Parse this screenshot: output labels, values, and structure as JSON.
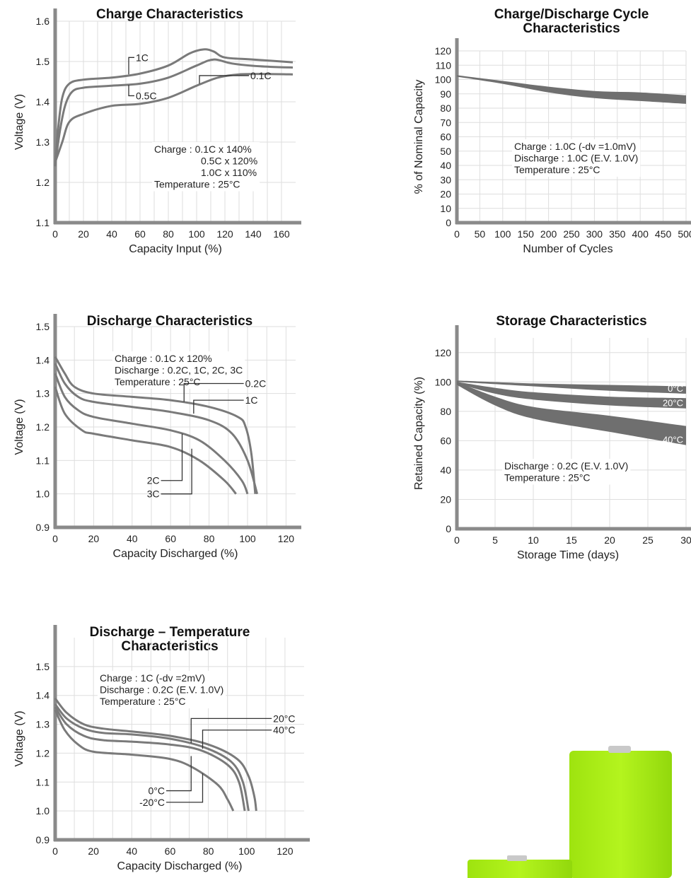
{
  "chart_data": [
    {
      "id": "charge",
      "type": "line",
      "title": [
        "Charge Characteristics"
      ],
      "xlabel": "Capacity Input (%)",
      "ylabel": "Voltage (V)",
      "xlim": [
        0,
        170
      ],
      "ylim": [
        1.1,
        1.6
      ],
      "xticks": [
        0,
        20,
        40,
        60,
        80,
        100,
        120,
        140,
        160
      ],
      "yticks": [
        1.1,
        1.2,
        1.3,
        1.4,
        1.5,
        1.6
      ],
      "ytick_labels": [
        "1.1",
        "1.2",
        "1.3",
        "1.4",
        "1.5",
        "1.6"
      ],
      "series": [
        {
          "name": "1C",
          "points": [
            [
              0,
              1.24
            ],
            [
              2,
              1.33
            ],
            [
              5,
              1.41
            ],
            [
              10,
              1.445
            ],
            [
              20,
              1.455
            ],
            [
              40,
              1.46
            ],
            [
              60,
              1.47
            ],
            [
              80,
              1.49
            ],
            [
              95,
              1.52
            ],
            [
              105,
              1.53
            ],
            [
              112,
              1.525
            ],
            [
              120,
              1.51
            ],
            [
              140,
              1.505
            ],
            [
              168,
              1.498
            ]
          ]
        },
        {
          "name": "0.5C",
          "points": [
            [
              0,
              1.24
            ],
            [
              3,
              1.32
            ],
            [
              7,
              1.39
            ],
            [
              12,
              1.425
            ],
            [
              20,
              1.435
            ],
            [
              40,
              1.44
            ],
            [
              60,
              1.445
            ],
            [
              80,
              1.46
            ],
            [
              100,
              1.49
            ],
            [
              112,
              1.505
            ],
            [
              125,
              1.495
            ],
            [
              145,
              1.488
            ],
            [
              168,
              1.485
            ]
          ]
        },
        {
          "name": "0.1C",
          "points": [
            [
              0,
              1.25
            ],
            [
              5,
              1.3
            ],
            [
              10,
              1.35
            ],
            [
              20,
              1.37
            ],
            [
              40,
              1.39
            ],
            [
              60,
              1.395
            ],
            [
              80,
              1.41
            ],
            [
              100,
              1.44
            ],
            [
              115,
              1.46
            ],
            [
              130,
              1.468
            ],
            [
              150,
              1.469
            ],
            [
              168,
              1.468
            ]
          ]
        }
      ],
      "labels": [
        {
          "text": "1C",
          "x": 52,
          "y": 1.51,
          "tx": 62,
          "ty": 1.51,
          "anchor_x": 52,
          "anchor_y": 1.468
        },
        {
          "text": "0.5C",
          "x": 52,
          "y": 1.415,
          "tx": 62,
          "ty": 1.415,
          "anchor_x": 52,
          "anchor_y": 1.442
        },
        {
          "text": "0.1C",
          "x": 122,
          "y": 1.465,
          "tx": 124,
          "ty": 1.465,
          "anchor_x": 102,
          "anchor_y": 1.445,
          "leftline": true
        }
      ],
      "notes": [
        "Charge : 0.1C x 140%",
        "0.5C x 120%",
        "1.0C x 110%",
        "Temperature : 25°C"
      ]
    },
    {
      "id": "cycle",
      "type": "area",
      "title": [
        "Charge/Discharge Cycle",
        "Characteristics"
      ],
      "xlabel": "Number of Cycles",
      "ylabel": "% of Nominal Capacity",
      "xlim": [
        0,
        500
      ],
      "ylim": [
        0,
        120
      ],
      "xticks": [
        0,
        50,
        100,
        150,
        200,
        250,
        300,
        350,
        400,
        450,
        500
      ],
      "yticks": [
        0,
        10,
        20,
        30,
        40,
        50,
        60,
        70,
        80,
        90,
        100,
        110,
        120
      ],
      "ytick_labels": [
        "0",
        "10",
        "20",
        "30",
        "40",
        "50",
        "60",
        "70",
        "80",
        "90",
        "100",
        "110",
        "120"
      ],
      "bands": [
        {
          "name": "",
          "upper": [
            [
              0,
              103
            ],
            [
              100,
              99
            ],
            [
              200,
              95
            ],
            [
              300,
              92
            ],
            [
              400,
              91
            ],
            [
              500,
              89
            ]
          ],
          "lower": [
            [
              0,
              102
            ],
            [
              100,
              97
            ],
            [
              200,
              91
            ],
            [
              300,
              87
            ],
            [
              400,
              85
            ],
            [
              500,
              83
            ]
          ]
        }
      ],
      "notes": [
        "Charge : 1.0C (-dv =1.0mV)",
        "Discharge : 1.0C (E.V. 1.0V)",
        "Temperature : 25°C"
      ]
    },
    {
      "id": "discharge",
      "type": "line",
      "title": [
        "Discharge Characteristics"
      ],
      "xlabel": "Capacity Discharged (%)",
      "ylabel": "Voltage (V)",
      "xlim": [
        0,
        125
      ],
      "ylim": [
        0.9,
        1.5
      ],
      "xticks": [
        0,
        20,
        40,
        60,
        80,
        100,
        120
      ],
      "yticks": [
        0.9,
        1.0,
        1.1,
        1.2,
        1.3,
        1.4,
        1.5
      ],
      "ytick_labels": [
        "0.9",
        "1.0",
        "1.1",
        "1.2",
        "1.3",
        "1.4",
        "1.5"
      ],
      "series": [
        {
          "name": "0.2C",
          "points": [
            [
              0,
              1.41
            ],
            [
              5,
              1.36
            ],
            [
              10,
              1.32
            ],
            [
              20,
              1.3
            ],
            [
              40,
              1.29
            ],
            [
              60,
              1.28
            ],
            [
              80,
              1.26
            ],
            [
              95,
              1.23
            ],
            [
              99,
              1.2
            ],
            [
              102,
              1.12
            ],
            [
              104,
              1.0
            ]
          ]
        },
        {
          "name": "1C",
          "points": [
            [
              0,
              1.39
            ],
            [
              5,
              1.33
            ],
            [
              12,
              1.29
            ],
            [
              20,
              1.275
            ],
            [
              40,
              1.26
            ],
            [
              60,
              1.245
            ],
            [
              80,
              1.22
            ],
            [
              92,
              1.18
            ],
            [
              100,
              1.1
            ],
            [
              105,
              1.0
            ]
          ]
        },
        {
          "name": "2C",
          "points": [
            [
              0,
              1.36
            ],
            [
              5,
              1.29
            ],
            [
              12,
              1.25
            ],
            [
              20,
              1.23
            ],
            [
              40,
              1.21
            ],
            [
              60,
              1.19
            ],
            [
              75,
              1.16
            ],
            [
              88,
              1.1
            ],
            [
              97,
              1.04
            ],
            [
              100,
              1.0
            ]
          ]
        },
        {
          "name": "3C",
          "points": [
            [
              0,
              1.32
            ],
            [
              5,
              1.24
            ],
            [
              14,
              1.19
            ],
            [
              20,
              1.18
            ],
            [
              40,
              1.16
            ],
            [
              60,
              1.14
            ],
            [
              75,
              1.1
            ],
            [
              88,
              1.04
            ],
            [
              94,
              1.0
            ]
          ]
        }
      ],
      "labels": [
        {
          "text": "0.2C",
          "x": 87,
          "y": 1.33,
          "tx": 87,
          "ty": 1.33,
          "anchor_x": 67,
          "anchor_y": 1.275,
          "leftline": true
        },
        {
          "text": "1C",
          "x": 87,
          "y": 1.28,
          "tx": 87,
          "ty": 1.28,
          "anchor_x": 72,
          "anchor_y": 1.24,
          "leftline": true
        },
        {
          "text": "2C",
          "x": 55,
          "y": 1.04,
          "tx": 55,
          "ty": 1.04,
          "anchor_x": 66,
          "anchor_y": 1.18,
          "rightline": true
        },
        {
          "text": "3C",
          "x": 55,
          "y": 1.0,
          "tx": 55,
          "ty": 1.0,
          "anchor_x": 71,
          "anchor_y": 1.135,
          "rightline": true
        }
      ],
      "notes": [
        "Charge : 0.1C x 120%",
        "Discharge : 0.2C, 1C, 2C, 3C",
        "Temperature : 25°C"
      ]
    },
    {
      "id": "storage",
      "type": "area",
      "title": [
        "Storage Characteristics"
      ],
      "xlabel": "Storage Time (days)",
      "ylabel": "Retained Capacity (%)",
      "xlim": [
        0,
        30
      ],
      "ylim": [
        0,
        130
      ],
      "xticks": [
        0,
        5,
        10,
        15,
        20,
        25,
        30
      ],
      "yticks": [
        0,
        20,
        40,
        60,
        80,
        100,
        120
      ],
      "ytick_labels": [
        "0",
        "20",
        "40",
        "60",
        "80",
        "100",
        "120"
      ],
      "bands": [
        {
          "name": "0°C",
          "upper": [
            [
              0,
              101
            ],
            [
              10,
              99
            ],
            [
              20,
              98
            ],
            [
              30,
              97
            ]
          ],
          "lower": [
            [
              0,
              100
            ],
            [
              10,
              97
            ],
            [
              20,
              94
            ],
            [
              30,
              92
            ]
          ]
        },
        {
          "name": "20°C",
          "upper": [
            [
              0,
              100
            ],
            [
              5,
              96
            ],
            [
              10,
              93
            ],
            [
              20,
              90
            ],
            [
              30,
              89
            ]
          ],
          "lower": [
            [
              0,
              99
            ],
            [
              5,
              92
            ],
            [
              10,
              88
            ],
            [
              20,
              84
            ],
            [
              30,
              82
            ]
          ]
        },
        {
          "name": "40°C",
          "upper": [
            [
              0,
              100
            ],
            [
              5,
              90
            ],
            [
              10,
              83
            ],
            [
              20,
              77
            ],
            [
              30,
              70
            ]
          ],
          "lower": [
            [
              0,
              98
            ],
            [
              5,
              84
            ],
            [
              10,
              75
            ],
            [
              20,
              66
            ],
            [
              30,
              57
            ]
          ]
        }
      ],
      "notes": [
        "Discharge : 0.2C (E.V. 1.0V)",
        "Temperature : 25°C"
      ]
    },
    {
      "id": "disctemp",
      "type": "line",
      "title": [
        "Discharge – Temperature",
        "Characteristics"
      ],
      "xlabel": "Capacity Discharged (%)",
      "ylabel": "Voltage (V)",
      "xlim": [
        0,
        130
      ],
      "ylim": [
        0.9,
        1.6
      ],
      "xticks": [
        0,
        20,
        40,
        60,
        80,
        100,
        120
      ],
      "yticks": [
        0.9,
        1.0,
        1.1,
        1.2,
        1.3,
        1.4,
        1.5
      ],
      "ytick_labels": [
        "0.9",
        "1.0",
        "1.1",
        "1.2",
        "1.3",
        "1.4",
        "1.5"
      ],
      "series": [
        {
          "name": "20°C",
          "points": [
            [
              0,
              1.39
            ],
            [
              6,
              1.34
            ],
            [
              15,
              1.3
            ],
            [
              25,
              1.285
            ],
            [
              40,
              1.275
            ],
            [
              60,
              1.26
            ],
            [
              80,
              1.23
            ],
            [
              95,
              1.18
            ],
            [
              101,
              1.12
            ],
            [
              104,
              1.05
            ],
            [
              105,
              1.0
            ]
          ]
        },
        {
          "name": "40°C",
          "points": [
            [
              0,
              1.37
            ],
            [
              6,
              1.32
            ],
            [
              15,
              1.285
            ],
            [
              25,
              1.27
            ],
            [
              40,
              1.265
            ],
            [
              60,
              1.25
            ],
            [
              78,
              1.22
            ],
            [
              92,
              1.17
            ],
            [
              98,
              1.1
            ],
            [
              101,
              1.0
            ]
          ]
        },
        {
          "name": "0°C",
          "points": [
            [
              0,
              1.36
            ],
            [
              6,
              1.3
            ],
            [
              15,
              1.26
            ],
            [
              25,
              1.245
            ],
            [
              40,
              1.24
            ],
            [
              60,
              1.23
            ],
            [
              76,
              1.21
            ],
            [
              90,
              1.16
            ],
            [
              96,
              1.1
            ],
            [
              99,
              1.0
            ]
          ]
        },
        {
          "name": "-20°C",
          "points": [
            [
              0,
              1.35
            ],
            [
              5,
              1.28
            ],
            [
              12,
              1.23
            ],
            [
              20,
              1.205
            ],
            [
              40,
              1.195
            ],
            [
              60,
              1.18
            ],
            [
              72,
              1.15
            ],
            [
              85,
              1.09
            ],
            [
              90,
              1.04
            ],
            [
              93,
              1.0
            ]
          ]
        }
      ],
      "labels": [
        {
          "text": "20°C",
          "x": 102,
          "y": 1.32,
          "tx": 102,
          "ty": 1.32,
          "anchor_x": 71,
          "anchor_y": 1.235,
          "leftline": true
        },
        {
          "text": "40°C",
          "x": 102,
          "y": 1.28,
          "tx": 102,
          "ty": 1.28,
          "anchor_x": 77,
          "anchor_y": 1.215,
          "leftline": true
        },
        {
          "text": "0°C",
          "x": 58,
          "y": 1.07,
          "tx": 58,
          "ty": 1.07,
          "anchor_x": 71,
          "anchor_y": 1.19,
          "rightline": true
        },
        {
          "text": "-20°C",
          "x": 58,
          "y": 1.03,
          "tx": 58,
          "ty": 1.03,
          "anchor_x": 77,
          "anchor_y": 1.13,
          "rightline": true
        }
      ],
      "notes": [
        "Charge : 1C (-dv =2mV)",
        "Discharge : 0.2C (E.V. 1.0V)",
        "Temperature : 25°C"
      ]
    }
  ]
}
